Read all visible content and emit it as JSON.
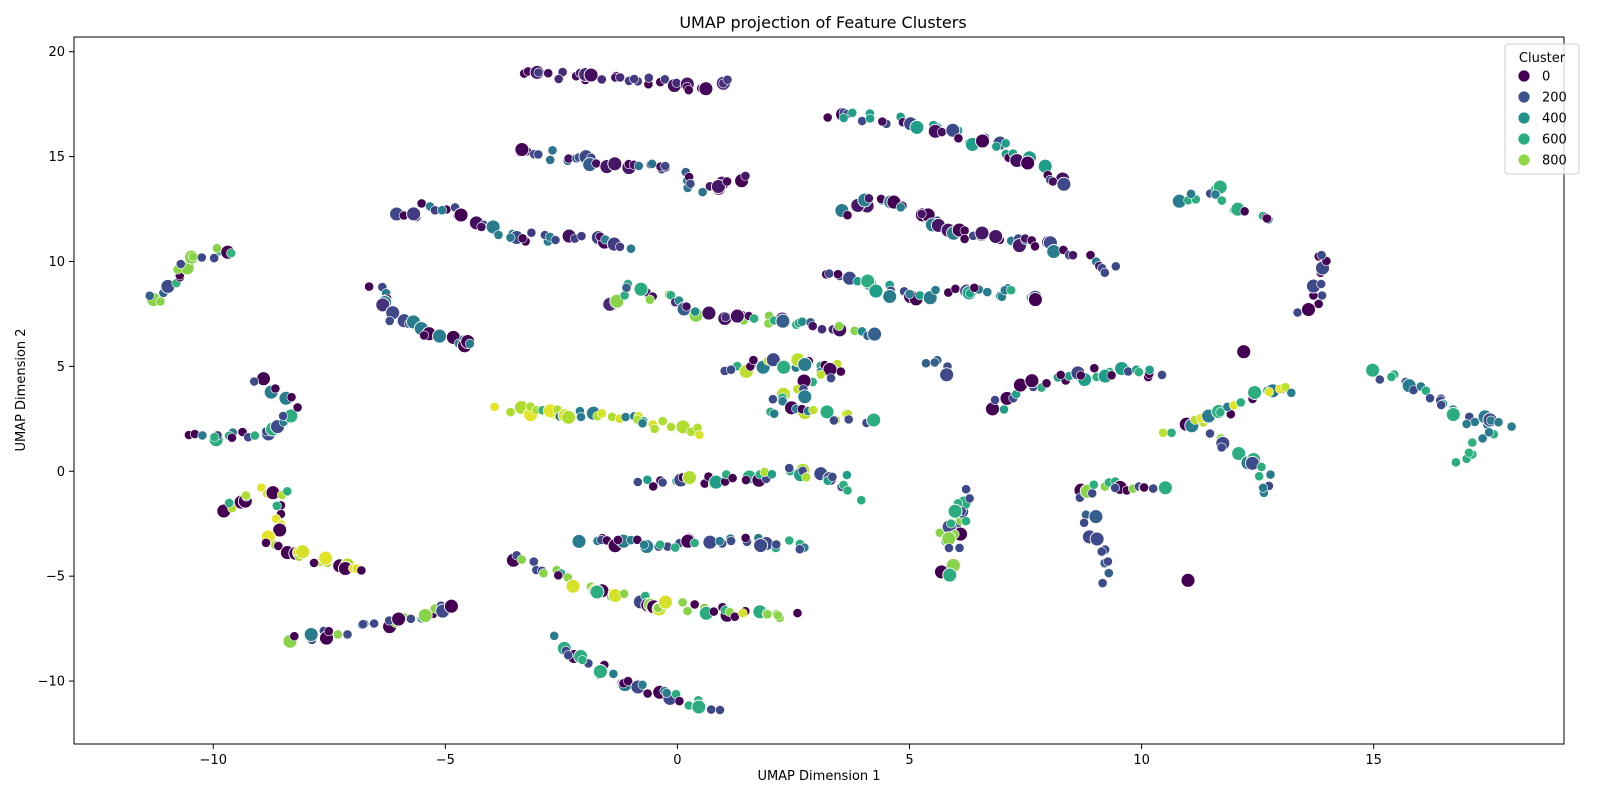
{
  "chart_data": {
    "type": "scatter",
    "title": "UMAP projection of Feature Clusters",
    "xlabel": "UMAP Dimension 1",
    "ylabel": "UMAP Dimension 2",
    "xlim": [
      -13.0,
      19.1
    ],
    "ylim": [
      -13.0,
      20.7
    ],
    "xticks": [
      -10,
      -5,
      0,
      5,
      10,
      15
    ],
    "yticks": [
      -10,
      -5,
      0,
      5,
      10,
      15,
      20
    ],
    "grid": false,
    "legend": {
      "title": "Cluster",
      "placement": "top-right",
      "entries": [
        {
          "label": "0",
          "color": "#440154"
        },
        {
          "label": "200",
          "color": "#3b528b"
        },
        {
          "label": "400",
          "color": "#21918c"
        },
        {
          "label": "600",
          "color": "#27ad81"
        },
        {
          "label": "800",
          "color": "#8fd744"
        }
      ]
    },
    "colormap": "viridis",
    "value_range": [
      0,
      1000
    ],
    "segments": [
      {
        "points": [
          [
            -3.3,
            18.9
          ],
          [
            -1.5,
            18.8
          ],
          [
            -0.5,
            18.6
          ],
          [
            0.5,
            18.2
          ],
          [
            1.2,
            18.8
          ]
        ],
        "clusters": [
          0,
          40,
          120,
          60,
          20,
          180
        ]
      },
      {
        "points": [
          [
            -3.5,
            15.3
          ],
          [
            -1.5,
            14.7
          ],
          [
            0,
            14.3
          ],
          [
            0.5,
            13.4
          ],
          [
            1.5,
            14.0
          ]
        ],
        "clusters": [
          0,
          60,
          380,
          220,
          40,
          300
        ]
      },
      {
        "points": [
          [
            -6.0,
            12.1
          ],
          [
            -5.3,
            12.7
          ],
          [
            -3.5,
            11.2
          ],
          [
            -1.5,
            11.0
          ],
          [
            -1.0,
            10.8
          ]
        ],
        "clusters": [
          0,
          220,
          420,
          40,
          180
        ]
      },
      {
        "points": [
          [
            -11.5,
            7.9
          ],
          [
            -11.0,
            8.8
          ],
          [
            -10.5,
            10.0
          ],
          [
            -9.9,
            10.5
          ],
          [
            -9.6,
            10.5
          ]
        ],
        "clusters": [
          0,
          220,
          640,
          820,
          300
        ]
      },
      {
        "points": [
          [
            -6.6,
            8.9
          ],
          [
            -6.0,
            7.2
          ],
          [
            -5.0,
            6.3
          ],
          [
            -4.2,
            6.0
          ]
        ],
        "clusters": [
          0,
          220,
          420,
          140
        ]
      },
      {
        "points": [
          [
            -1.5,
            7.7
          ],
          [
            -1.0,
            8.8
          ],
          [
            0.5,
            7.6
          ],
          [
            2.5,
            7.1
          ],
          [
            4.2,
            6.5
          ]
        ],
        "clusters": [
          300,
          820,
          480,
          620,
          120,
          40
        ]
      },
      {
        "points": [
          [
            3.2,
            17.1
          ],
          [
            5.0,
            16.6
          ],
          [
            7.0,
            15.5
          ],
          [
            8.4,
            13.5
          ]
        ],
        "clusters": [
          220,
          560,
          0,
          40
        ]
      },
      {
        "points": [
          [
            3.7,
            12.3
          ],
          [
            4.5,
            13.0
          ],
          [
            6.0,
            11.3
          ],
          [
            8.0,
            10.8
          ],
          [
            9.5,
            9.5
          ]
        ],
        "clusters": [
          0,
          220,
          420,
          60,
          0
        ]
      },
      {
        "points": [
          [
            3.2,
            9.6
          ],
          [
            4.0,
            9.0
          ],
          [
            5.0,
            8.3
          ],
          [
            6.5,
            8.6
          ],
          [
            7.8,
            8.4
          ]
        ],
        "clusters": [
          420,
          220,
          620,
          0,
          560
        ]
      },
      {
        "points": [
          [
            10.8,
            13.0
          ],
          [
            11.5,
            13.5
          ],
          [
            12.0,
            12.5
          ],
          [
            12.9,
            11.8
          ]
        ],
        "clusters": [
          0,
          620,
          220,
          420
        ]
      },
      {
        "points": [
          [
            13.5,
            7.5
          ],
          [
            13.8,
            8.5
          ],
          [
            14.0,
            9.8
          ],
          [
            13.8,
            10.3
          ]
        ],
        "clusters": [
          0,
          220,
          0
        ]
      },
      {
        "points": [
          [
            -10.5,
            1.7
          ],
          [
            -9.0,
            1.7
          ],
          [
            -8.5,
            2.2
          ],
          [
            -8.3,
            3.5
          ],
          [
            -9.0,
            4.5
          ]
        ],
        "clusters": [
          220,
          0,
          420,
          620,
          0
        ]
      },
      {
        "points": [
          [
            -3.8,
            3.0
          ],
          [
            -2.5,
            2.8
          ],
          [
            -1.0,
            2.5
          ],
          [
            0,
            2.1
          ],
          [
            0.5,
            1.9
          ]
        ],
        "clusters": [
          420,
          620,
          960,
          880,
          940
        ]
      },
      {
        "points": [
          [
            1.0,
            4.7
          ],
          [
            2.0,
            5.2
          ],
          [
            3.5,
            4.9
          ],
          [
            2.0,
            3.0
          ],
          [
            4.2,
            2.4
          ]
        ],
        "clusters": [
          620,
          900,
          0,
          420,
          220
        ]
      },
      {
        "points": [
          [
            5.3,
            5.3
          ],
          [
            5.8,
            5.0
          ]
        ],
        "clusters": [
          220,
          300
        ]
      },
      {
        "points": [
          [
            6.7,
            2.9
          ],
          [
            7.5,
            4.0
          ],
          [
            9.0,
            4.7
          ],
          [
            10.5,
            4.7
          ]
        ],
        "clusters": [
          620,
          0,
          560,
          220
        ]
      },
      {
        "points": [
          [
            10.5,
            1.9
          ],
          [
            11.5,
            2.5
          ],
          [
            12.0,
            3.2
          ],
          [
            12.8,
            3.8
          ],
          [
            13.4,
            3.8
          ]
        ],
        "clusters": [
          900,
          0,
          420,
          620,
          960
        ]
      },
      {
        "points": [
          [
            11.5,
            1.9
          ],
          [
            12.0,
            0.8
          ],
          [
            12.6,
            -0.2
          ],
          [
            12.8,
            -1.2
          ]
        ],
        "clusters": [
          620,
          820,
          220,
          420
        ]
      },
      {
        "points": [
          [
            15.0,
            4.7
          ],
          [
            16.0,
            3.8
          ],
          [
            17.0,
            2.5
          ],
          [
            18.0,
            2.3
          ]
        ],
        "clusters": [
          220,
          420,
          620,
          220
        ]
      },
      {
        "points": [
          [
            16.7,
            0.6
          ],
          [
            17.2,
            1.2
          ],
          [
            17.6,
            2.0
          ]
        ],
        "clusters": [
          420,
          620,
          640
        ]
      },
      {
        "points": [
          [
            -9.8,
            -2.0
          ],
          [
            -9.2,
            -1.0
          ],
          [
            -8.5,
            -0.9
          ],
          [
            -8.8,
            -3.5
          ],
          [
            -7.5,
            -4.3
          ],
          [
            -6.6,
            -4.6
          ]
        ],
        "clusters": [
          880,
          960,
          0,
          620,
          940,
          0
        ]
      },
      {
        "points": [
          [
            -0.8,
            -0.6
          ],
          [
            1.0,
            -0.4
          ],
          [
            2.5,
            0
          ],
          [
            3.5,
            -0.3
          ],
          [
            3.9,
            -1.4
          ]
        ],
        "clusters": [
          0,
          620,
          880,
          560,
          220
        ]
      },
      {
        "points": [
          [
            -2.1,
            -3.3
          ],
          [
            -0.5,
            -3.5
          ],
          [
            1.5,
            -3.4
          ],
          [
            2.8,
            -3.5
          ]
        ],
        "clusters": [
          220,
          0,
          420,
          620
        ]
      },
      {
        "points": [
          [
            5.7,
            -3.4
          ],
          [
            6.0,
            -2.0
          ],
          [
            6.2,
            -1.0
          ],
          [
            5.8,
            -5.3
          ]
        ],
        "clusters": [
          0,
          620,
          220,
          820
        ]
      },
      {
        "points": [
          [
            8.5,
            -1.2
          ],
          [
            9.3,
            -0.5
          ],
          [
            10.0,
            -1.0
          ],
          [
            10.7,
            -0.8
          ]
        ],
        "clusters": [
          0,
          220,
          620,
          820
        ]
      },
      {
        "points": [
          [
            8.8,
            -1.8
          ],
          [
            9.1,
            -3.5
          ],
          [
            9.2,
            -5.3
          ]
        ],
        "clusters": [
          220,
          300
        ]
      },
      {
        "points": [
          [
            -3.7,
            -3.9
          ],
          [
            -2.0,
            -5.5
          ],
          [
            -0.5,
            -6.3
          ],
          [
            1.5,
            -6.8
          ],
          [
            2.5,
            -6.9
          ]
        ],
        "clusters": [
          0,
          220,
          620,
          820,
          940
        ]
      },
      {
        "points": [
          [
            -8.4,
            -8.0
          ],
          [
            -7.5,
            -7.8
          ],
          [
            -6.0,
            -7.0
          ],
          [
            -4.7,
            -6.4
          ]
        ],
        "clusters": [
          220,
          820,
          420,
          0
        ]
      },
      {
        "points": [
          [
            -2.7,
            -8.0
          ],
          [
            -1.5,
            -9.8
          ],
          [
            0,
            -10.8
          ],
          [
            1.0,
            -11.5
          ]
        ],
        "clusters": [
          0,
          220,
          620,
          420
        ]
      }
    ],
    "extra_points": [
      {
        "x": 11.0,
        "y": -5.2,
        "cluster": 0
      },
      {
        "x": 12.2,
        "y": 5.7,
        "cluster": 0
      },
      {
        "x": 5.8,
        "y": 4.6,
        "cluster": 220
      }
    ]
  }
}
